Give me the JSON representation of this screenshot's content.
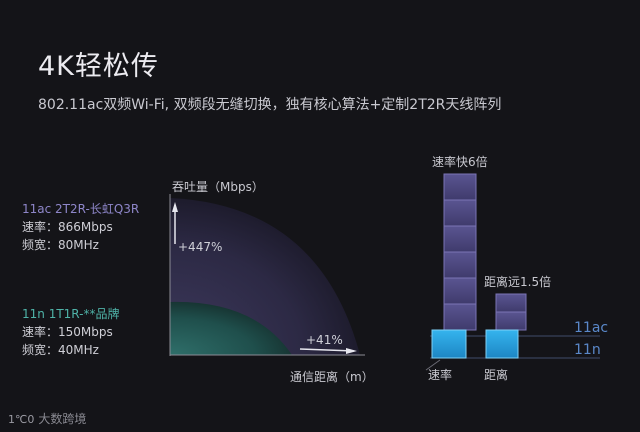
{
  "title": "4K轻松传",
  "subtitle": "802.11ac双频Wi-Fi, 双频段无缝切换，独有核心算法+定制2T2R天线阵列",
  "left_diagram": {
    "y_axis_label": "吞吐量（Mbps）",
    "x_axis_label": "通信距离（m）",
    "ac_gain_label": "+447%",
    "n_gain_label": "+41%",
    "ac_spec": {
      "name": "11ac 2T2R-长虹Q3R",
      "speed": "速率：866Mbps",
      "bandwidth": "频宽：80MHz",
      "color": "#7d74c4"
    },
    "n_spec": {
      "name": "11n 1T1R-**品牌",
      "speed": "速率：150Mbps",
      "bandwidth": "频宽：40MHz",
      "color": "#2f8c86"
    }
  },
  "right_diagram": {
    "speed_label": "速率快6倍",
    "distance_label": "距离远1.5倍",
    "legend_11ac": "11ac",
    "legend_11n": "11n",
    "x_labels": [
      "速率",
      "距离"
    ]
  },
  "logo": {
    "text": "大数跨境",
    "mark": "1℃0"
  }
}
